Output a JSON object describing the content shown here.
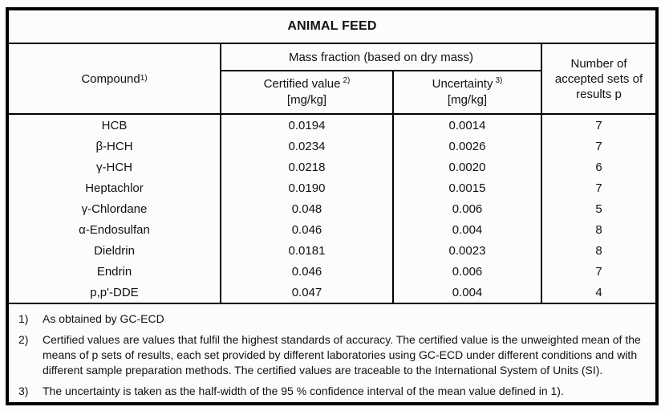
{
  "title": "ANIMAL FEED",
  "header": {
    "compound_label": "Compound",
    "compound_sup": "1)",
    "mass_fraction_label": "Mass fraction (based on dry mass)",
    "certified_label": "Certified value",
    "certified_sup": "2)",
    "certified_unit": "[mg/kg]",
    "uncertainty_label": "Uncertainty",
    "uncertainty_sup": "3)",
    "uncertainty_unit": "[mg/kg]",
    "accepted_label": "Number of accepted sets of results p"
  },
  "rows": [
    {
      "compound": "HCB",
      "certified": "0.0194",
      "uncertainty": "0.0014",
      "p": "7"
    },
    {
      "compound": "β-HCH",
      "certified": "0.0234",
      "uncertainty": "0.0026",
      "p": "7"
    },
    {
      "compound": "γ-HCH",
      "certified": "0.0218",
      "uncertainty": "0.0020",
      "p": "6"
    },
    {
      "compound": "Heptachlor",
      "certified": "0.0190",
      "uncertainty": "0.0015",
      "p": "7"
    },
    {
      "compound": "γ-Chlordane",
      "certified": "0.048",
      "uncertainty": "0.006",
      "p": "5"
    },
    {
      "compound": "α-Endosulfan",
      "certified": "0.046",
      "uncertainty": "0.004",
      "p": "8"
    },
    {
      "compound": "Dieldrin",
      "certified": "0.0181",
      "uncertainty": "0.0023",
      "p": "8"
    },
    {
      "compound": "Endrin",
      "certified": "0.046",
      "uncertainty": "0.006",
      "p": "7"
    },
    {
      "compound": "p,p'-DDE",
      "certified": "0.047",
      "uncertainty": "0.004",
      "p": "4"
    }
  ],
  "footnotes": [
    {
      "marker": "1)",
      "text": "As obtained by GC-ECD"
    },
    {
      "marker": "2)",
      "text": "Certified values are values that fulfil the highest standards of accuracy. The certified value is the unweighted mean of the means of p sets of results, each set provided by different laboratories using GC-ECD under different conditions and with different sample preparation methods. The certified values are traceable to the International System of Units (SI)."
    },
    {
      "marker": "3)",
      "text": "The uncertainty is taken as the half-width of the 95 % confidence interval of the mean value defined in 1)."
    }
  ],
  "colors": {
    "border": "#000000",
    "text": "#111111",
    "background": "#fcfcfc"
  }
}
